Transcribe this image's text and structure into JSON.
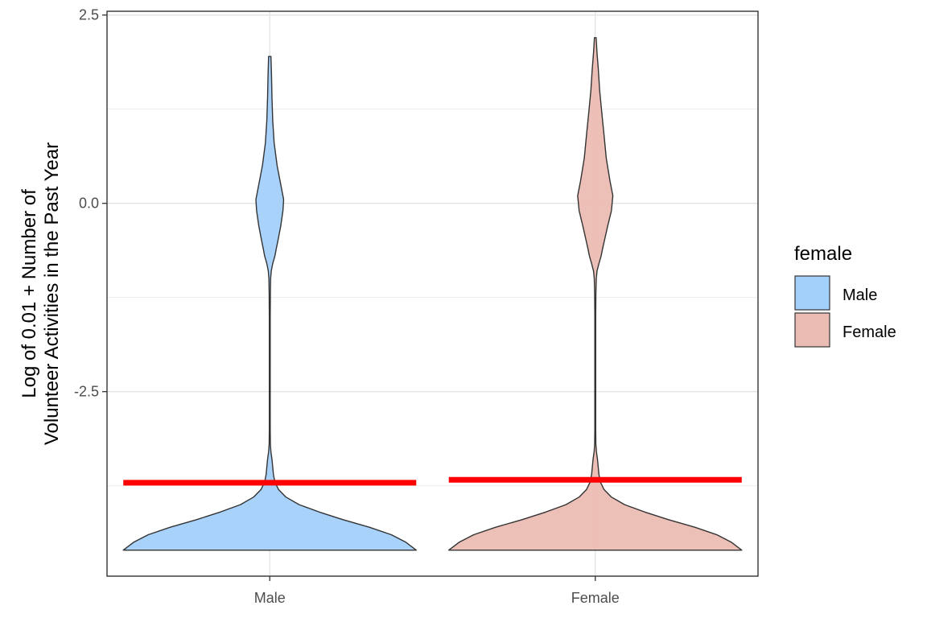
{
  "chart_data": {
    "type": "violin",
    "xlabel": "",
    "ylabel_lines": [
      "Log of 0.01 + Number of",
      "Volunteer Activities in the Past Year"
    ],
    "categories": [
      "Male",
      "Female"
    ],
    "ylim": [
      -4.95,
      2.55
    ],
    "yticks": [
      2.5,
      0.0,
      -2.5
    ],
    "ytick_labels": [
      "2.5",
      "0.0",
      "-2.5"
    ],
    "grid": true,
    "legend": {
      "title": "female",
      "position": "right",
      "entries": [
        "Male",
        "Female"
      ]
    },
    "series": [
      {
        "name": "Male",
        "color": "#a3d0fa",
        "y_min": -4.605,
        "y_max": 1.95,
        "mean_line": -3.71,
        "density_profile": [
          [
            -4.605,
            1.0
          ],
          [
            -4.5,
            0.93
          ],
          [
            -4.4,
            0.83
          ],
          [
            -4.3,
            0.68
          ],
          [
            -4.2,
            0.5
          ],
          [
            -4.1,
            0.34
          ],
          [
            -4.0,
            0.2
          ],
          [
            -3.9,
            0.11
          ],
          [
            -3.8,
            0.06
          ],
          [
            -3.7,
            0.035
          ],
          [
            -3.6,
            0.025
          ],
          [
            -3.5,
            0.02
          ],
          [
            -3.4,
            0.015
          ],
          [
            -3.3,
            0.008
          ],
          [
            -3.2,
            0.004
          ],
          [
            -3.0,
            0.003
          ],
          [
            -1.5,
            0.003
          ],
          [
            -1.2,
            0.004
          ],
          [
            -1.0,
            0.006
          ],
          [
            -0.9,
            0.01
          ],
          [
            -0.8,
            0.02
          ],
          [
            -0.7,
            0.035
          ],
          [
            -0.6,
            0.045
          ],
          [
            -0.5,
            0.055
          ],
          [
            -0.3,
            0.075
          ],
          [
            -0.1,
            0.09
          ],
          [
            0.05,
            0.095
          ],
          [
            0.2,
            0.08
          ],
          [
            0.5,
            0.05
          ],
          [
            0.8,
            0.03
          ],
          [
            1.1,
            0.02
          ],
          [
            1.4,
            0.015
          ],
          [
            1.7,
            0.012
          ],
          [
            1.95,
            0.008
          ]
        ]
      },
      {
        "name": "Female",
        "color": "#ebbcb3",
        "y_min": -4.605,
        "y_max": 2.2,
        "mean_line": -3.67,
        "density_profile": [
          [
            -4.605,
            1.0
          ],
          [
            -4.5,
            0.93
          ],
          [
            -4.4,
            0.83
          ],
          [
            -4.3,
            0.68
          ],
          [
            -4.2,
            0.5
          ],
          [
            -4.1,
            0.34
          ],
          [
            -4.0,
            0.2
          ],
          [
            -3.9,
            0.11
          ],
          [
            -3.8,
            0.06
          ],
          [
            -3.7,
            0.035
          ],
          [
            -3.6,
            0.025
          ],
          [
            -3.5,
            0.02
          ],
          [
            -3.4,
            0.015
          ],
          [
            -3.3,
            0.008
          ],
          [
            -3.2,
            0.004
          ],
          [
            -3.0,
            0.003
          ],
          [
            -1.5,
            0.003
          ],
          [
            -1.2,
            0.004
          ],
          [
            -1.0,
            0.007
          ],
          [
            -0.9,
            0.012
          ],
          [
            -0.8,
            0.025
          ],
          [
            -0.7,
            0.04
          ],
          [
            -0.6,
            0.05
          ],
          [
            -0.5,
            0.062
          ],
          [
            -0.3,
            0.085
          ],
          [
            -0.1,
            0.11
          ],
          [
            0.1,
            0.12
          ],
          [
            0.3,
            0.1
          ],
          [
            0.6,
            0.075
          ],
          [
            0.9,
            0.06
          ],
          [
            1.2,
            0.045
          ],
          [
            1.5,
            0.03
          ],
          [
            1.8,
            0.02
          ],
          [
            2.0,
            0.012
          ],
          [
            2.2,
            0.006
          ]
        ]
      }
    ],
    "mean_line_color": "#ff0000"
  }
}
